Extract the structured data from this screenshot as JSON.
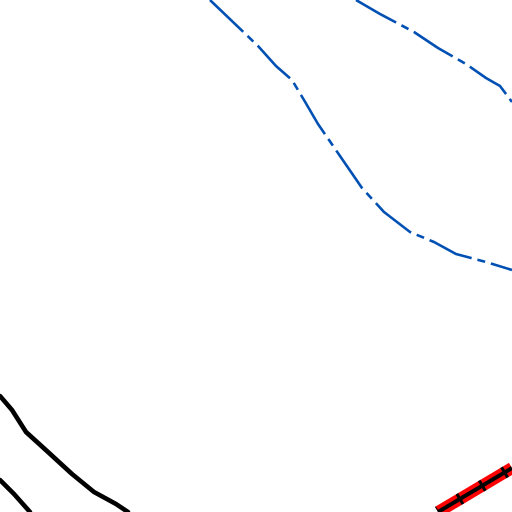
{
  "map": {
    "background_color": "#ffffff",
    "features": [
      {
        "kind": "boundary",
        "style": "dash-dot",
        "color": "#0050b4"
      },
      {
        "kind": "road",
        "style": "solid",
        "color": "#000000"
      },
      {
        "kind": "road",
        "style": "solid",
        "color": "#000000"
      },
      {
        "kind": "railway",
        "style": "railway",
        "color": "#ff0000",
        "ties_color": "#000000"
      }
    ]
  }
}
